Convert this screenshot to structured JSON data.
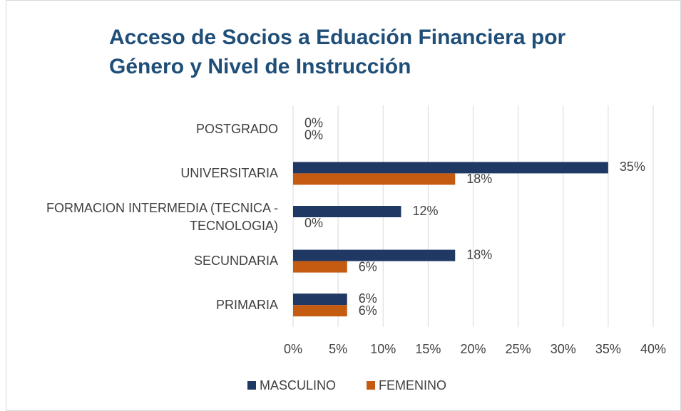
{
  "chart_data": {
    "type": "bar",
    "orientation": "horizontal",
    "title": "Acceso de Socios a Eduación Financiera por Género y Nivel de Instrucción",
    "categories": [
      "POSTGRADO",
      "UNIVERSITARIA",
      "FORMACION INTERMEDIA (TECNICA - TECNOLOGIA)",
      "SECUNDARIA",
      "PRIMARIA"
    ],
    "series": [
      {
        "name": "MASCULINO",
        "color": "#203864",
        "values": [
          0,
          35,
          12,
          18,
          6
        ],
        "value_labels": [
          "0%",
          "35%",
          "12%",
          "18%",
          "6%"
        ]
      },
      {
        "name": "FEMENINO",
        "color": "#c55a11",
        "values": [
          0,
          18,
          0,
          6,
          6
        ],
        "value_labels": [
          "0%",
          "18%",
          "0%",
          "6%",
          "6%"
        ]
      }
    ],
    "xlim": [
      0,
      40
    ],
    "xticks": [
      {
        "value": 0,
        "label": "0%"
      },
      {
        "value": 5,
        "label": "5%"
      },
      {
        "value": 10,
        "label": "10%"
      },
      {
        "value": 15,
        "label": "15%"
      },
      {
        "value": 20,
        "label": "20%"
      },
      {
        "value": 25,
        "label": "25%"
      },
      {
        "value": 30,
        "label": "30%"
      },
      {
        "value": 35,
        "label": "35%"
      },
      {
        "value": 40,
        "label": "40%"
      }
    ],
    "grid": true,
    "legend": "bottom"
  }
}
